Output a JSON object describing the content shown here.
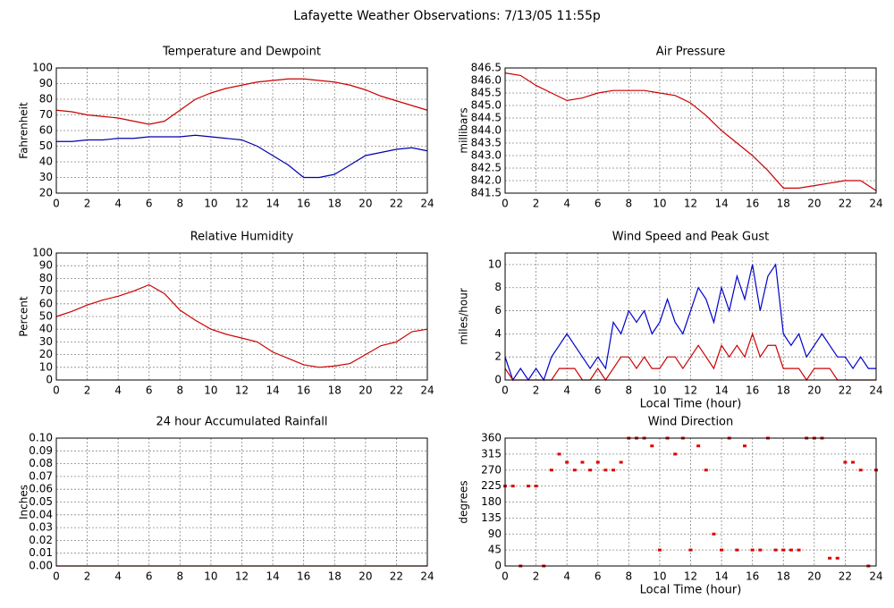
{
  "title": "Lafayette Weather Observations: 7/13/05 11:55p",
  "chart_data": [
    {
      "type": "line",
      "title": "Temperature and Dewpoint",
      "ylabel": "Fahrenheit",
      "x": [
        0,
        1,
        2,
        3,
        4,
        5,
        6,
        7,
        8,
        9,
        10,
        11,
        12,
        13,
        14,
        15,
        16,
        17,
        18,
        19,
        20,
        21,
        22,
        23,
        24
      ],
      "series": [
        {
          "name": "Temperature",
          "color": "#cc0000",
          "values": [
            73,
            72,
            70,
            69,
            68,
            66,
            64,
            66,
            73,
            80,
            84,
            87,
            89,
            91,
            92,
            93,
            93,
            92,
            91,
            89,
            86,
            82,
            79,
            76,
            73
          ]
        },
        {
          "name": "Dewpoint",
          "color": "#0000aa",
          "values": [
            53,
            53,
            54,
            54,
            55,
            55,
            56,
            56,
            56,
            57,
            56,
            55,
            54,
            50,
            44,
            38,
            30,
            30,
            32,
            38,
            44,
            46,
            48,
            49,
            47
          ]
        }
      ],
      "xlim": [
        0,
        24
      ],
      "xticks": [
        0,
        2,
        4,
        6,
        8,
        10,
        12,
        14,
        16,
        18,
        20,
        22,
        24
      ],
      "ylim": [
        20,
        100
      ],
      "yticks": [
        20,
        30,
        40,
        50,
        60,
        70,
        80,
        90,
        100
      ],
      "grid": true
    },
    {
      "type": "line",
      "title": "Air Pressure",
      "ylabel": "millibars",
      "x": [
        0,
        1,
        2,
        3,
        4,
        5,
        6,
        7,
        8,
        9,
        10,
        11,
        12,
        13,
        14,
        15,
        16,
        17,
        18,
        19,
        20,
        21,
        22,
        23,
        24
      ],
      "series": [
        {
          "name": "Pressure",
          "color": "#cc0000",
          "values": [
            846.3,
            846.2,
            845.8,
            845.5,
            845.2,
            845.3,
            845.5,
            845.6,
            845.6,
            845.6,
            845.5,
            845.4,
            845.1,
            844.6,
            844.0,
            843.5,
            843.0,
            842.4,
            841.7,
            841.7,
            841.8,
            841.9,
            842.0,
            842.0,
            841.6
          ]
        }
      ],
      "xlim": [
        0,
        24
      ],
      "xticks": [
        0,
        2,
        4,
        6,
        8,
        10,
        12,
        14,
        16,
        18,
        20,
        22,
        24
      ],
      "ylim": [
        841.5,
        846.5
      ],
      "yticks": [
        841.5,
        {
          "value": 842,
          "label": "842.0"
        },
        842.5,
        {
          "value": 843,
          "label": "843.0"
        },
        843.5,
        {
          "value": 844,
          "label": "844.0"
        },
        844.5,
        {
          "value": 845,
          "label": "845.0"
        },
        845.5,
        {
          "value": 846,
          "label": "846.0"
        },
        846.5
      ],
      "grid": true
    },
    {
      "type": "line",
      "title": "Relative Humidity",
      "ylabel": "Percent",
      "x": [
        0,
        1,
        2,
        3,
        4,
        5,
        6,
        7,
        8,
        9,
        10,
        11,
        12,
        13,
        14,
        15,
        16,
        17,
        18,
        19,
        20,
        21,
        22,
        23,
        24
      ],
      "series": [
        {
          "name": "Humidity",
          "color": "#cc0000",
          "values": [
            50,
            54,
            59,
            63,
            66,
            70,
            75,
            68,
            55,
            47,
            40,
            36,
            33,
            30,
            22,
            17,
            12,
            10,
            11,
            13,
            20,
            27,
            30,
            38,
            40
          ]
        }
      ],
      "xlim": [
        0,
        24
      ],
      "xticks": [
        0,
        2,
        4,
        6,
        8,
        10,
        12,
        14,
        16,
        18,
        20,
        22,
        24
      ],
      "ylim": [
        0,
        100
      ],
      "yticks": [
        0,
        10,
        20,
        30,
        40,
        50,
        60,
        70,
        80,
        90,
        100
      ],
      "grid": true
    },
    {
      "type": "line",
      "title": "Wind Speed and Peak Gust",
      "ylabel": "miles/hour",
      "xlabel": "Local Time (hour)",
      "x": [
        0,
        0.5,
        1,
        1.5,
        2,
        2.5,
        3,
        3.5,
        4,
        4.5,
        5,
        5.5,
        6,
        6.5,
        7,
        7.5,
        8,
        8.5,
        9,
        9.5,
        10,
        10.5,
        11,
        11.5,
        12,
        12.5,
        13,
        13.5,
        14,
        14.5,
        15,
        15.5,
        16,
        16.5,
        17,
        17.5,
        18,
        18.5,
        19,
        19.5,
        20,
        20.5,
        21,
        21.5,
        22,
        22.5,
        23,
        23.5,
        24
      ],
      "series": [
        {
          "name": "Peak Gust",
          "color": "#0000cc",
          "values": [
            2,
            0,
            1,
            0,
            1,
            0,
            2,
            3,
            4,
            3,
            2,
            1,
            2,
            1,
            5,
            4,
            6,
            5,
            6,
            4,
            5,
            7,
            5,
            4,
            6,
            8,
            7,
            5,
            8,
            6,
            9,
            7,
            10,
            6,
            9,
            10,
            4,
            3,
            4,
            2,
            3,
            4,
            3,
            2,
            2,
            1,
            2,
            1,
            1
          ]
        },
        {
          "name": "Wind Speed",
          "color": "#cc0000",
          "values": [
            1,
            0,
            0,
            0,
            0,
            0,
            0,
            1,
            1,
            1,
            0,
            0,
            1,
            0,
            1,
            2,
            2,
            1,
            2,
            1,
            1,
            2,
            2,
            1,
            2,
            3,
            2,
            1,
            3,
            2,
            3,
            2,
            4,
            2,
            3,
            3,
            1,
            1,
            1,
            0,
            1,
            1,
            1,
            0,
            0,
            0,
            0,
            0,
            0
          ]
        }
      ],
      "xlim": [
        0,
        24
      ],
      "xticks": [
        0,
        2,
        4,
        6,
        8,
        10,
        12,
        14,
        16,
        18,
        20,
        22,
        24
      ],
      "ylim": [
        0,
        11
      ],
      "yticks": [
        0,
        2,
        4,
        6,
        8,
        10
      ],
      "grid": true
    },
    {
      "type": "line",
      "title": "24 hour Accumulated Rainfall",
      "ylabel": "Inches",
      "x": [
        0,
        24
      ],
      "series": [
        {
          "name": "Rainfall",
          "color": "#cc0000",
          "values": [
            0,
            0
          ]
        }
      ],
      "xlim": [
        0,
        24
      ],
      "xticks": [
        0,
        2,
        4,
        6,
        8,
        10,
        12,
        14,
        16,
        18,
        20,
        22,
        24
      ],
      "ylim": [
        0,
        0.1
      ],
      "yticks": [
        {
          "value": 0,
          "label": "0.00"
        },
        0.01,
        0.02,
        0.03,
        0.04,
        0.05,
        0.06,
        0.07,
        0.08,
        0.09,
        {
          "value": 0.1,
          "label": "0.10"
        }
      ],
      "grid": true
    },
    {
      "type": "scatter",
      "title": "Wind Direction",
      "ylabel": "degrees",
      "xlabel": "Local Time (hour)",
      "x": [
        0,
        0.5,
        1,
        1.5,
        2,
        2.5,
        3,
        3.5,
        4,
        4.5,
        5,
        5.5,
        6,
        6.5,
        7,
        7.5,
        8,
        8.5,
        9,
        9.5,
        10,
        10.5,
        11,
        11.5,
        12,
        12.5,
        13,
        13.5,
        14,
        14.5,
        15,
        15.5,
        16,
        16.5,
        17,
        17.5,
        18,
        18.5,
        19,
        19.5,
        20,
        20.5,
        21,
        21.5,
        22,
        22.5,
        23,
        23.5,
        24
      ],
      "series": [
        {
          "name": "Direction",
          "color": "#dd0000",
          "values": [
            225,
            225,
            0,
            225,
            225,
            0,
            270,
            315,
            292,
            270,
            292,
            270,
            292,
            270,
            270,
            292,
            360,
            360,
            360,
            338,
            45,
            360,
            315,
            360,
            45,
            338,
            270,
            90,
            45,
            360,
            45,
            338,
            45,
            45,
            360,
            45,
            45,
            45,
            45,
            360,
            360,
            360,
            22,
            22,
            292,
            292,
            270,
            0,
            270
          ]
        }
      ],
      "xlim": [
        0,
        24
      ],
      "xticks": [
        0,
        2,
        4,
        6,
        8,
        10,
        12,
        14,
        16,
        18,
        20,
        22,
        24
      ],
      "ylim": [
        0,
        360
      ],
      "yticks": [
        0,
        45,
        90,
        135,
        180,
        225,
        270,
        315,
        360
      ],
      "grid": true
    }
  ]
}
